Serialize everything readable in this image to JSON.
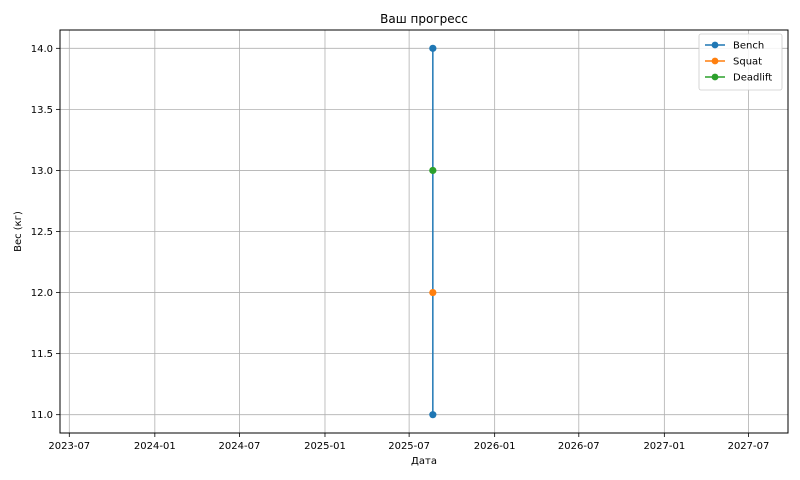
{
  "chart_data": {
    "type": "line",
    "title": "Ваш прогресс",
    "xlabel": "Дата",
    "ylabel": "Вес (кг)",
    "x_ticks": [
      "2023-07",
      "2024-01",
      "2024-07",
      "2025-01",
      "2025-07",
      "2026-01",
      "2026-07",
      "2027-01",
      "2027-07"
    ],
    "xlim": [
      "2023-06-11",
      "2027-09-24"
    ],
    "y_ticks": [
      "11.0",
      "11.5",
      "12.0",
      "12.5",
      "13.0",
      "13.5",
      "14.0"
    ],
    "ylim": [
      10.85,
      14.15
    ],
    "grid": true,
    "legend_position": "top-right",
    "series": [
      {
        "name": "Bench",
        "color": "#1f77b4",
        "points": [
          {
            "x": "2025-08-21",
            "y": 11.0
          },
          {
            "x": "2025-08-21",
            "y": 14.0
          }
        ]
      },
      {
        "name": "Squat",
        "color": "#ff7f0e",
        "points": [
          {
            "x": "2025-08-21",
            "y": 12.0
          }
        ]
      },
      {
        "name": "Deadlift",
        "color": "#2ca02c",
        "points": [
          {
            "x": "2025-08-21",
            "y": 13.0
          }
        ]
      }
    ]
  }
}
